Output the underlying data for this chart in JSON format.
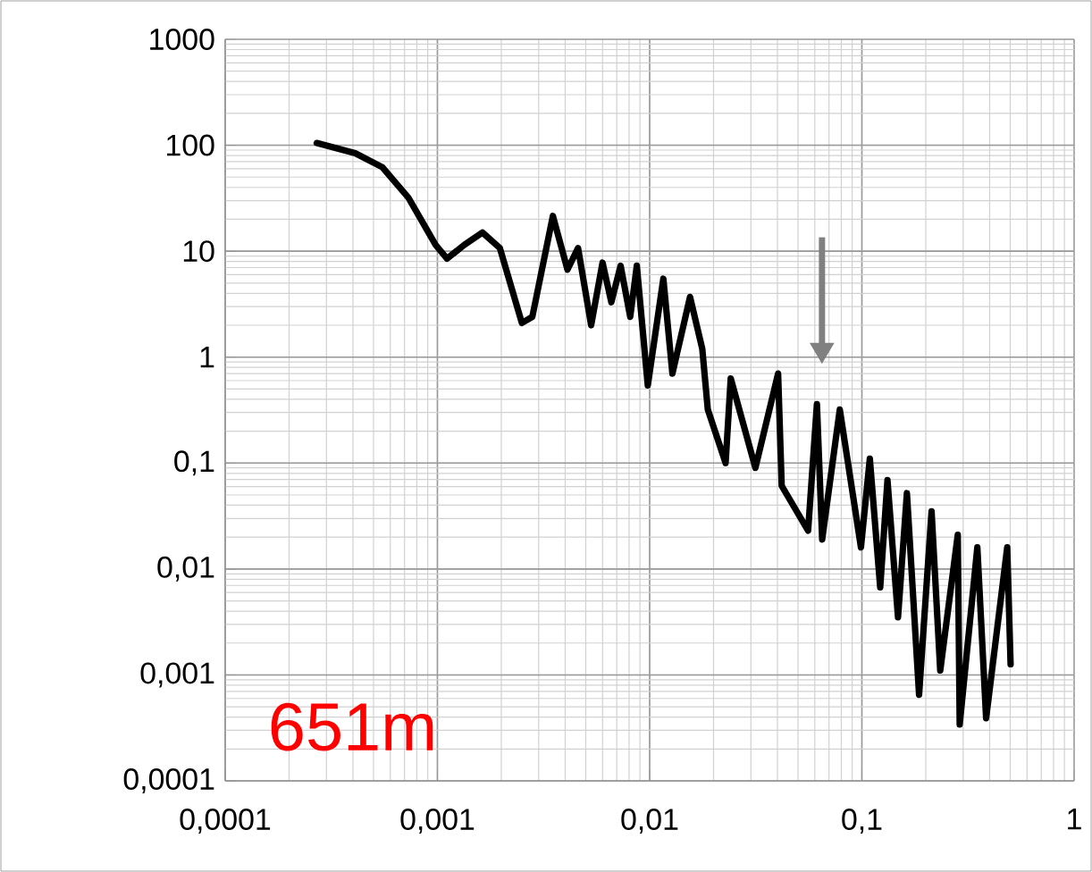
{
  "chart_data": {
    "type": "line",
    "log": "xy",
    "grid": true,
    "marker": "none",
    "line_style": "solid",
    "xlim": [
      0.0001,
      1
    ],
    "ylim": [
      0.0001,
      1000
    ],
    "xticks": [
      {
        "value": 0.0001,
        "label": "0,0001"
      },
      {
        "value": 0.001,
        "label": "0,001"
      },
      {
        "value": 0.01,
        "label": "0,01"
      },
      {
        "value": 0.1,
        "label": "0,1"
      },
      1
    ],
    "yticks": [
      {
        "value": 0.0001,
        "label": "0,0001"
      },
      {
        "value": 0.001,
        "label": "0,001"
      },
      {
        "value": 0.01,
        "label": "0,01"
      },
      {
        "value": 0.1,
        "label": "0,1"
      },
      1,
      10,
      100,
      1000
    ],
    "annotations": [
      "651m"
    ],
    "series": [
      {
        "color": "#000000",
        "x": [
          0.00027,
          0.00041,
          0.00055,
          0.00073,
          0.00098,
          0.00111,
          0.00134,
          0.00163,
          0.00197,
          0.0025,
          0.0028,
          0.0035,
          0.0041,
          0.0046,
          0.0053,
          0.006,
          0.0066,
          0.0073,
          0.0081,
          0.0087,
          0.0098,
          0.0116,
          0.0128,
          0.0155,
          0.0177,
          0.0188,
          0.0228,
          0.0241,
          0.0315,
          0.0403,
          0.0419,
          0.0558,
          0.0614,
          0.065,
          0.0787,
          0.099,
          0.109,
          0.122,
          0.132,
          0.148,
          0.163,
          0.186,
          0.213,
          0.234,
          0.283,
          0.289,
          0.35,
          0.385,
          0.484,
          0.502
        ],
        "values": [
          105,
          84,
          62,
          32,
          11.5,
          8.5,
          11.5,
          15,
          10.7,
          2.1,
          2.4,
          21.5,
          6.7,
          10.7,
          2.0,
          7.8,
          3.3,
          7.3,
          2.4,
          7.3,
          0.54,
          5.5,
          0.7,
          3.7,
          1.2,
          0.32,
          0.1,
          0.63,
          0.09,
          0.7,
          0.061,
          0.023,
          0.36,
          0.019,
          0.32,
          0.016,
          0.11,
          0.0067,
          0.069,
          0.0035,
          0.052,
          0.00065,
          0.035,
          0.0011,
          0.021,
          0.00034,
          0.016,
          0.00039,
          0.016,
          0.00126
        ]
      }
    ]
  }
}
